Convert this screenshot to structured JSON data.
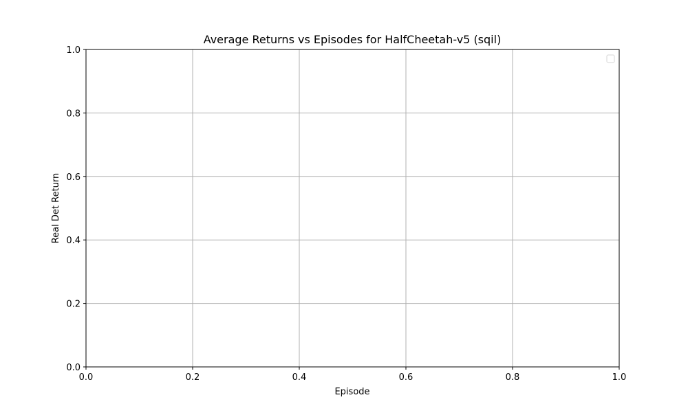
{
  "chart_data": {
    "type": "line",
    "title": "Average Returns vs Episodes for HalfCheetah-v5 (sqil)",
    "xlabel": "Episode",
    "ylabel": "Real Det Return",
    "xlim": [
      0.0,
      1.0
    ],
    "ylim": [
      0.0,
      1.0
    ],
    "xticks": [
      0.0,
      0.2,
      0.4,
      0.6,
      0.8,
      1.0
    ],
    "yticks": [
      0.0,
      0.2,
      0.4,
      0.6,
      0.8,
      1.0
    ],
    "xtick_labels": [
      "0.0",
      "0.2",
      "0.4",
      "0.6",
      "0.8",
      "1.0"
    ],
    "ytick_labels": [
      "0.0",
      "0.2",
      "0.4",
      "0.6",
      "0.8",
      "1.0"
    ],
    "grid": true,
    "legend": {
      "placement": "top-right",
      "entries": []
    },
    "series": [],
    "colors": {
      "grid": "#b0b0b0",
      "axes": "#000000",
      "legend_border": "#d6d6d6"
    }
  }
}
